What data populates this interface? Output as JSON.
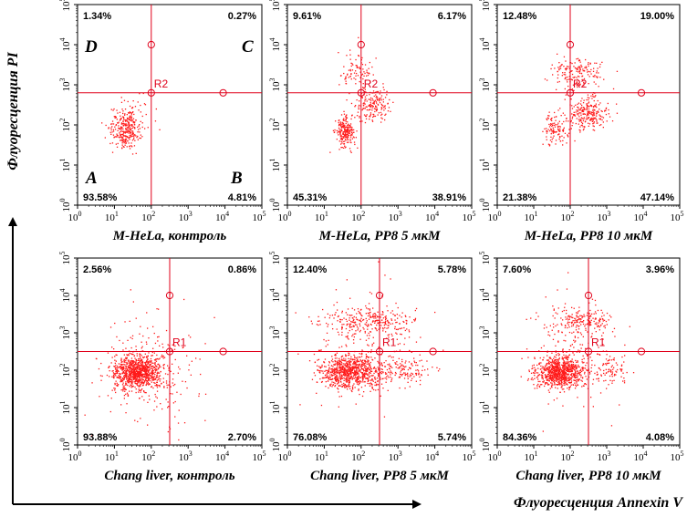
{
  "x_axis_title": "Флуоресценция Annexin V",
  "y_axis_title": "Флуоресценция PI",
  "colors": {
    "dots": "#ff1a1a",
    "gate": "#e0001a",
    "frame": "#000000"
  },
  "quadrant_letters": {
    "D": "D",
    "C": "C",
    "A": "A",
    "B": "B"
  },
  "chart_data": [
    {
      "type": "scatter",
      "title": "M-HeLa, контроль",
      "gate_label": "R2",
      "gate": {
        "x_decades": 2.0,
        "y_decades": 2.8
      },
      "xlim": [
        0,
        5
      ],
      "ylim": [
        0,
        5
      ],
      "xticks": [
        "10",
        "10",
        "10",
        "10",
        "10",
        "10"
      ],
      "xtick_exps": [
        "0",
        "1",
        "2",
        "3",
        "4",
        "5"
      ],
      "quadrants": {
        "upper_left": "1.34%",
        "upper_right": "0.27%",
        "lower_left": "93.58%",
        "lower_right": "4.81%"
      },
      "show_quadrant_letters": true,
      "clusters": [
        {
          "x": 1.3,
          "y": 1.9,
          "sx": 0.2,
          "sy": 0.25,
          "n": 300
        },
        {
          "x": 1.6,
          "y": 2.3,
          "sx": 0.4,
          "sy": 0.4,
          "n": 30
        }
      ]
    },
    {
      "type": "scatter",
      "title": "M-HeLa, PP8 5 мкМ",
      "gate_label": "R2",
      "gate": {
        "x_decades": 2.0,
        "y_decades": 2.8
      },
      "xlim": [
        0,
        5
      ],
      "ylim": [
        0,
        5
      ],
      "xticks": [
        "10",
        "10",
        "10",
        "10",
        "10",
        "10"
      ],
      "xtick_exps": [
        "0",
        "1",
        "2",
        "3",
        "4",
        "5"
      ],
      "quadrants": {
        "upper_left": "9.61%",
        "upper_right": "6.17%",
        "lower_left": "45.31%",
        "lower_right": "38.91%"
      },
      "show_quadrant_letters": false,
      "clusters": [
        {
          "x": 1.55,
          "y": 1.8,
          "sx": 0.12,
          "sy": 0.18,
          "n": 220
        },
        {
          "x": 2.3,
          "y": 2.5,
          "sx": 0.25,
          "sy": 0.2,
          "n": 180
        },
        {
          "x": 1.9,
          "y": 3.3,
          "sx": 0.25,
          "sy": 0.25,
          "n": 90
        }
      ]
    },
    {
      "type": "scatter",
      "title": "M-HeLa, PP8 10 мкМ",
      "gate_label": "R2",
      "gate": {
        "x_decades": 2.0,
        "y_decades": 2.8
      },
      "xlim": [
        0,
        5
      ],
      "ylim": [
        0,
        5
      ],
      "xticks": [
        "10",
        "10",
        "10",
        "10",
        "10",
        "10"
      ],
      "xtick_exps": [
        "0",
        "1",
        "2",
        "3",
        "4",
        "5"
      ],
      "quadrants": {
        "upper_left": "12.48%",
        "upper_right": "19.00%",
        "lower_left": "21.38%",
        "lower_right": "47.14%"
      },
      "show_quadrant_letters": false,
      "clusters": [
        {
          "x": 2.5,
          "y": 2.3,
          "sx": 0.25,
          "sy": 0.2,
          "n": 240
        },
        {
          "x": 1.6,
          "y": 1.9,
          "sx": 0.18,
          "sy": 0.2,
          "n": 120
        },
        {
          "x": 2.2,
          "y": 3.3,
          "sx": 0.35,
          "sy": 0.2,
          "n": 170
        }
      ]
    },
    {
      "type": "scatter",
      "title": "Chang liver, контроль",
      "gate_label": "R1",
      "gate": {
        "x_decades": 2.5,
        "y_decades": 2.5
      },
      "xlim": [
        0,
        5
      ],
      "ylim": [
        0,
        5
      ],
      "xticks": [
        "10",
        "10",
        "10",
        "10",
        "10",
        "10"
      ],
      "xtick_exps": [
        "0",
        "1",
        "2",
        "3",
        "4",
        "5"
      ],
      "quadrants": {
        "upper_left": "2.56%",
        "upper_right": "0.86%",
        "lower_left": "93.88%",
        "lower_right": "2.70%"
      },
      "show_quadrant_letters": false,
      "clusters": [
        {
          "x": 1.6,
          "y": 1.95,
          "sx": 0.35,
          "sy": 0.22,
          "n": 900
        },
        {
          "x": 2.0,
          "y": 2.0,
          "sx": 0.6,
          "sy": 0.7,
          "n": 250
        }
      ]
    },
    {
      "type": "scatter",
      "title": "Chang liver, PP8 5 мкМ",
      "gate_label": "R1",
      "gate": {
        "x_decades": 2.5,
        "y_decades": 2.5
      },
      "xlim": [
        0,
        5
      ],
      "ylim": [
        0,
        5
      ],
      "xticks": [
        "10",
        "10",
        "10",
        "10",
        "10",
        "10"
      ],
      "xtick_exps": [
        "0",
        "1",
        "2",
        "3",
        "4",
        "5"
      ],
      "quadrants": {
        "upper_left": "12.40%",
        "upper_right": "5.78%",
        "lower_left": "76.08%",
        "lower_right": "5.74%"
      },
      "show_quadrant_letters": false,
      "clusters": [
        {
          "x": 1.7,
          "y": 1.95,
          "sx": 0.4,
          "sy": 0.22,
          "n": 800
        },
        {
          "x": 2.2,
          "y": 3.3,
          "sx": 0.6,
          "sy": 0.2,
          "n": 260
        },
        {
          "x": 3.2,
          "y": 2.0,
          "sx": 0.35,
          "sy": 0.2,
          "n": 120
        },
        {
          "x": 2.1,
          "y": 2.5,
          "sx": 0.7,
          "sy": 0.8,
          "n": 200
        }
      ]
    },
    {
      "type": "scatter",
      "title": "Chang liver, PP8 10 мкМ",
      "gate_label": "R1",
      "gate": {
        "x_decades": 2.5,
        "y_decades": 2.5
      },
      "xlim": [
        0,
        5
      ],
      "ylim": [
        0,
        5
      ],
      "xticks": [
        "10",
        "10",
        "10",
        "10",
        "10",
        "10"
      ],
      "xtick_exps": [
        "0",
        "1",
        "2",
        "3",
        "4",
        "5"
      ],
      "quadrants": {
        "upper_left": "7.60%",
        "upper_right": "3.96%",
        "lower_left": "84.36%",
        "lower_right": "4.08%"
      },
      "show_quadrant_letters": false,
      "clusters": [
        {
          "x": 1.7,
          "y": 1.95,
          "sx": 0.33,
          "sy": 0.2,
          "n": 850
        },
        {
          "x": 2.3,
          "y": 3.3,
          "sx": 0.45,
          "sy": 0.18,
          "n": 180
        },
        {
          "x": 3.1,
          "y": 2.0,
          "sx": 0.3,
          "sy": 0.2,
          "n": 80
        },
        {
          "x": 2.1,
          "y": 2.5,
          "sx": 0.6,
          "sy": 0.75,
          "n": 160
        }
      ]
    }
  ]
}
